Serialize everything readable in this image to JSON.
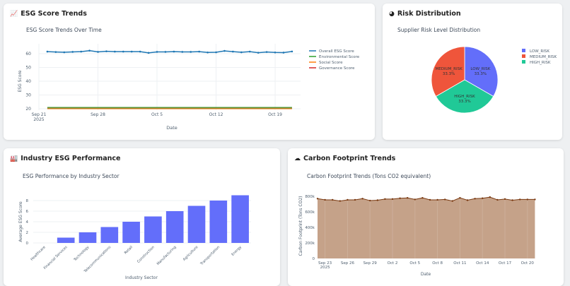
{
  "esg": {
    "heading": "ESG Score Trends",
    "icon": "chart-line-icon",
    "chart_data": {
      "type": "line",
      "title": "ESG Score Trends Over Time",
      "xlabel": "Date",
      "ylabel": "ESG Score",
      "x_start": "2025-09-22",
      "x_end": "2025-10-21",
      "x_ticks": [
        "Sep 21",
        "Sep 28",
        "Oct 5",
        "Oct 12",
        "Oct 19"
      ],
      "x_tick_year": "2025",
      "y_ticks": [
        20,
        30,
        40,
        50,
        60
      ],
      "legend": "right",
      "series": [
        {
          "name": "Overall ESG Score",
          "color": "#1f77b4",
          "values": [
            61.5,
            61.2,
            61,
            61.3,
            61.5,
            62.2,
            61.3,
            61.7,
            61.5,
            61.5,
            61.5,
            61.5,
            60.6,
            61.3,
            61.3,
            61.5,
            61.3,
            61.3,
            61.5,
            60.9,
            61,
            62,
            61.5,
            61,
            61.5,
            60.7,
            61.2,
            60.9,
            60.8,
            61.6
          ]
        },
        {
          "name": "Environmental Score",
          "color": "#2ca02c",
          "values": [
            20.8,
            20.8,
            20.8,
            20.8,
            20.8,
            20.8,
            20.8,
            20.8,
            20.8,
            20.8,
            20.8,
            20.8,
            20.8,
            20.8,
            20.8,
            20.8,
            20.8,
            20.8,
            20.8,
            20.8,
            20.8,
            20.8,
            20.8,
            20.8,
            20.8,
            20.8,
            20.8,
            20.8,
            20.8,
            20.8
          ]
        },
        {
          "name": "Social Score",
          "color": "#ff7f0e",
          "values": [
            20.2,
            20.2,
            20.2,
            20.2,
            20.2,
            20.2,
            20.2,
            20.2,
            20.2,
            20.2,
            20.2,
            20.2,
            20.2,
            20.2,
            20.2,
            20.2,
            20.2,
            20.2,
            20.2,
            20.2,
            20.2,
            20.2,
            20.2,
            20.2,
            20.2,
            20.2,
            20.2,
            20.2,
            20.2,
            20.2
          ]
        },
        {
          "name": "Governance Score",
          "color": "#d62728",
          "values": [
            20.5,
            20.5,
            20.5,
            20.5,
            20.5,
            20.5,
            20.5,
            20.5,
            20.5,
            20.5,
            20.5,
            20.5,
            20.5,
            20.5,
            20.5,
            20.5,
            20.5,
            20.5,
            20.5,
            20.5,
            20.5,
            20.5,
            20.5,
            20.5,
            20.5,
            20.5,
            20.5,
            20.5,
            20.5,
            20.5
          ]
        }
      ]
    }
  },
  "risk": {
    "heading": "Risk Distribution",
    "icon": "chart-pie-icon",
    "chart_data": {
      "type": "pie",
      "title": "Supplier Risk Level Distribution",
      "legend": "right",
      "slices": [
        {
          "label": "LOW_RISK",
          "value": 33.3,
          "text": "33.3%",
          "color": "#636efa"
        },
        {
          "label": "HIGH_RISK",
          "value": 33.3,
          "text": "33.3%",
          "color": "#20c997"
        },
        {
          "label": "MEDIUM_RISK",
          "value": 33.3,
          "text": "33.3%",
          "color": "#ef553b"
        }
      ],
      "legend_order": [
        "LOW_RISK",
        "MEDIUM_RISK",
        "HIGH_RISK"
      ]
    }
  },
  "industry": {
    "heading": "Industry ESG Performance",
    "icon": "industry-icon",
    "chart_data": {
      "type": "bar",
      "title": "ESG Performance by Industry Sector",
      "xlabel": "Industry Sector",
      "ylabel": "Average ESG Score",
      "categories": [
        "Healthcare",
        "Financial Services",
        "Technology",
        "Telecommunications",
        "Retail",
        "Construction",
        "Manufacturing",
        "Agriculture",
        "Transportation",
        "Energy"
      ],
      "values": [
        0,
        1,
        2,
        3,
        4,
        5,
        6,
        7,
        8,
        9
      ],
      "y_ticks": [
        0,
        2,
        4,
        6,
        8
      ],
      "color": "#636efa"
    }
  },
  "carbon": {
    "heading": "Carbon Footprint Trends",
    "icon": "smog-icon",
    "chart_data": {
      "type": "area",
      "title": "Carbon Footprint Trends (Tons CO2 equivalent)",
      "xlabel": "Date",
      "ylabel": "Carbon Footprint (Tons CO2)",
      "x_start": "2025-09-22",
      "x_end": "2025-10-21",
      "x_ticks": [
        "Sep 23",
        "Sep 26",
        "Sep 29",
        "Oct 2",
        "Oct 5",
        "Oct 8",
        "Oct 11",
        "Oct 14",
        "Oct 17",
        "Oct 20"
      ],
      "x_tick_year": "2025",
      "y_ticks": [
        "0",
        "200k",
        "400k",
        "600k",
        "800k"
      ],
      "color": "#8b4513",
      "values": [
        770000,
        755000,
        755000,
        740000,
        755000,
        755000,
        770000,
        745000,
        750000,
        765000,
        765000,
        775000,
        780000,
        760000,
        780000,
        755000,
        755000,
        760000,
        740000,
        780000,
        750000,
        770000,
        775000,
        790000,
        755000,
        765000,
        750000,
        760000,
        760000,
        760000
      ]
    }
  }
}
